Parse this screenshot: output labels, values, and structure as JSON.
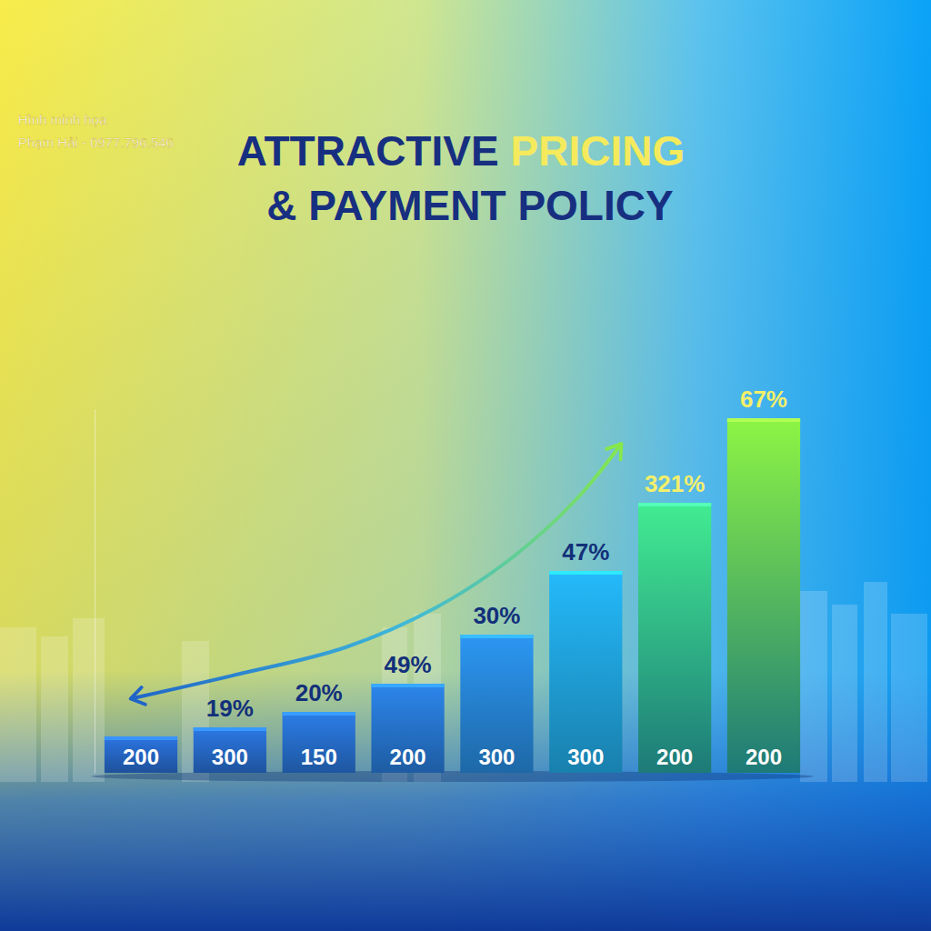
{
  "chart_data": {
    "type": "bar",
    "title": [
      "ATTRACTIVE",
      "PRICING",
      "& PAYMENT POLICY"
    ],
    "annotations": [
      "Hình minh họa",
      "Phạm Hải - 0977.796.546"
    ],
    "categories": [
      null,
      null,
      null,
      null,
      null,
      null,
      null,
      null
    ],
    "values": [
      40,
      50,
      67,
      98,
      152,
      222,
      297,
      390
    ],
    "bar_labels": [
      200,
      300,
      150,
      200,
      300,
      300,
      200,
      200
    ],
    "percent_labels": [
      null,
      "19%",
      "20%",
      "49%",
      "30%",
      "47%",
      "321%",
      "67%"
    ],
    "colors": [
      "#2a6fd6",
      "#2a73d9",
      "#2a77dc",
      "#2a7fe0",
      "#2a8fe6",
      "#22b0ee",
      "#3fe08a",
      "#86e840"
    ],
    "ylim": [
      0,
      400
    ],
    "tick_labels": false
  }
}
